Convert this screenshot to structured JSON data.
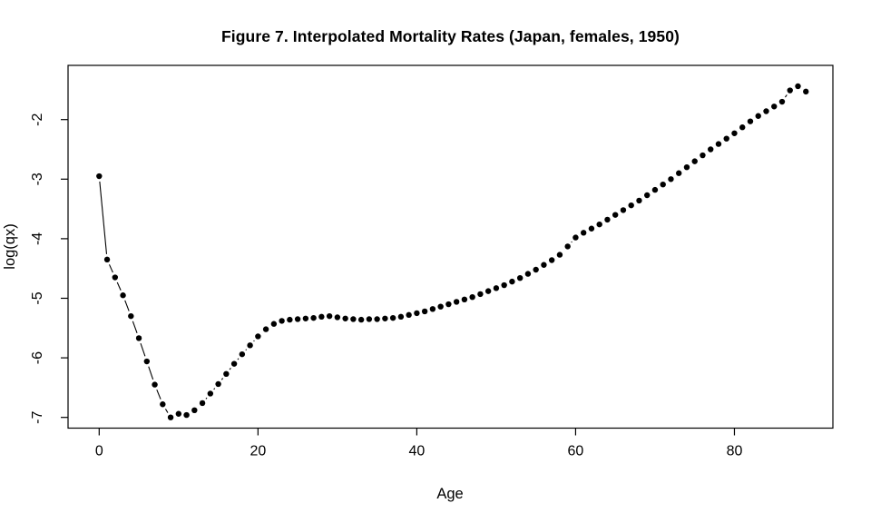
{
  "figure": {
    "title": "Figure 7. Interpolated Mortality Rates (Japan, females, 1950)",
    "xlabel": "Age",
    "ylabel": "log(qx)"
  },
  "chart_data": {
    "type": "scatter",
    "title": "Figure 7. Interpolated Mortality Rates (Japan, females, 1950)",
    "xlabel": "Age",
    "ylabel": "log(qx)",
    "marker": "filled-circle",
    "connect": "segments-with-gaps",
    "grid": false,
    "legend": "none",
    "point_color": "#000000",
    "axis_color": "#000000",
    "background_color": "#ffffff",
    "xticks": [
      0,
      20,
      40,
      60,
      80
    ],
    "yticks": [
      -7,
      -6,
      -5,
      -4,
      -3,
      -2
    ],
    "xlim": [
      -3.92,
      92.4
    ],
    "ylim": [
      -7.18,
      -1.09
    ],
    "x": [
      0,
      1,
      2,
      3,
      4,
      5,
      6,
      7,
      8,
      9,
      10,
      11,
      12,
      13,
      14,
      15,
      16,
      17,
      18,
      19,
      20,
      21,
      22,
      23,
      24,
      25,
      26,
      27,
      28,
      29,
      30,
      31,
      32,
      33,
      34,
      35,
      36,
      37,
      38,
      39,
      40,
      41,
      42,
      43,
      44,
      45,
      46,
      47,
      48,
      49,
      50,
      51,
      52,
      53,
      54,
      55,
      56,
      57,
      58,
      59,
      60,
      61,
      62,
      63,
      64,
      65,
      66,
      67,
      68,
      69,
      70,
      71,
      72,
      73,
      74,
      75,
      76,
      77,
      78,
      79,
      80,
      81,
      82,
      83,
      84,
      85,
      86,
      87,
      88,
      89
    ],
    "y": [
      -2.95,
      -4.35,
      -4.65,
      -4.95,
      -5.3,
      -5.67,
      -6.06,
      -6.45,
      -6.78,
      -7.0,
      -6.94,
      -6.96,
      -6.88,
      -6.76,
      -6.6,
      -6.44,
      -6.27,
      -6.1,
      -5.94,
      -5.79,
      -5.64,
      -5.52,
      -5.43,
      -5.38,
      -5.36,
      -5.35,
      -5.34,
      -5.33,
      -5.31,
      -5.3,
      -5.32,
      -5.34,
      -5.35,
      -5.36,
      -5.35,
      -5.35,
      -5.34,
      -5.33,
      -5.31,
      -5.28,
      -5.25,
      -5.22,
      -5.18,
      -5.14,
      -5.1,
      -5.06,
      -5.02,
      -4.98,
      -4.93,
      -4.88,
      -4.83,
      -4.78,
      -4.72,
      -4.66,
      -4.59,
      -4.52,
      -4.44,
      -4.36,
      -4.27,
      -4.13,
      -3.98,
      -3.9,
      -3.83,
      -3.76,
      -3.68,
      -3.6,
      -3.52,
      -3.44,
      -3.36,
      -3.27,
      -3.18,
      -3.09,
      -3.0,
      -2.9,
      -2.8,
      -2.7,
      -2.6,
      -2.5,
      -2.41,
      -2.32,
      -2.23,
      -2.13,
      -2.03,
      -1.94,
      -1.86,
      -1.78,
      -1.7,
      -1.51,
      -1.44,
      -1.53
    ]
  }
}
